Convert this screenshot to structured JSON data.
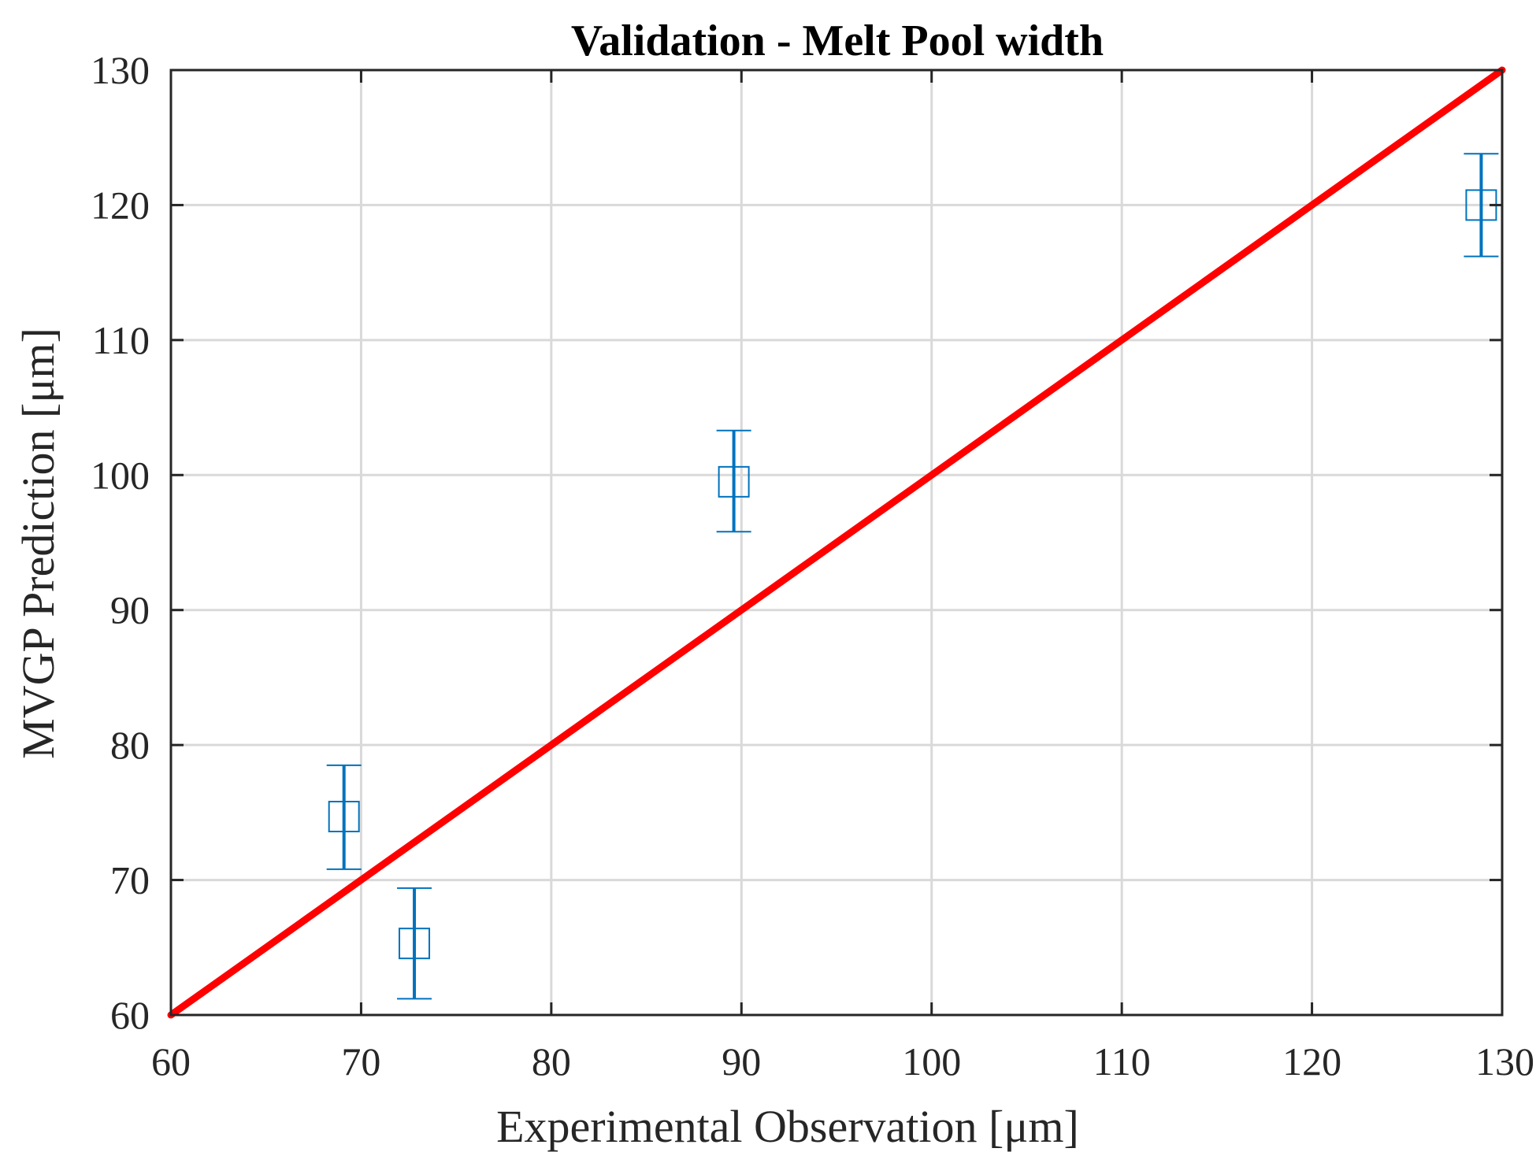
{
  "chart_data": {
    "type": "scatter",
    "title": "Validation - Melt Pool width",
    "xlabel": "Experimental Observation [μm]",
    "ylabel": "MVGP Prediction [μm]",
    "xlim": [
      60,
      130
    ],
    "ylim": [
      60,
      130
    ],
    "xticks": [
      60,
      70,
      80,
      90,
      100,
      110,
      120,
      130
    ],
    "yticks": [
      60,
      70,
      80,
      90,
      100,
      110,
      120,
      130
    ],
    "grid": true,
    "points": [
      {
        "x": 69.1,
        "y": 74.7,
        "err_low": 70.8,
        "err_high": 78.5
      },
      {
        "x": 72.8,
        "y": 65.3,
        "err_low": 61.2,
        "err_high": 69.4
      },
      {
        "x": 89.6,
        "y": 99.5,
        "err_low": 95.8,
        "err_high": 103.3
      },
      {
        "x": 128.9,
        "y": 120.0,
        "err_low": 116.2,
        "err_high": 123.8
      }
    ],
    "reference_line": {
      "x": [
        60,
        130
      ],
      "y": [
        60,
        130
      ]
    },
    "colors": {
      "points": "#0072BD",
      "reference_line": "#FF0000",
      "grid": "#d9d9d9",
      "axes": "#262626"
    }
  }
}
